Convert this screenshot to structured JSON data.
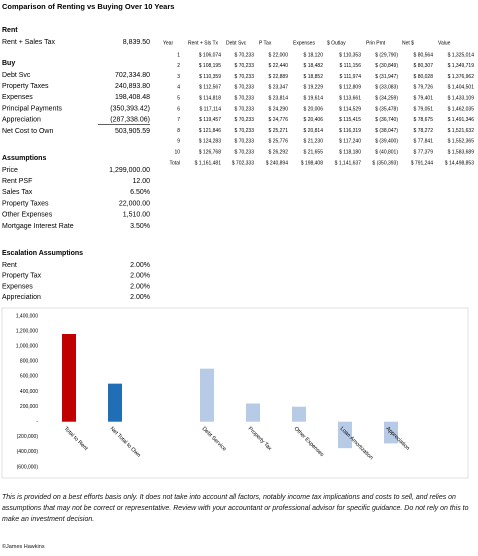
{
  "title": "Comparison of Renting vs Buying Over 10 Years",
  "rent": {
    "heading": "Rent",
    "rows": [
      [
        "Rent + Sales Tax",
        "8,839.50"
      ]
    ]
  },
  "buy": {
    "heading": "Buy",
    "rows": [
      [
        "Debt Svc",
        "702,334.80"
      ],
      [
        "Property Taxes",
        "240,893.80"
      ],
      [
        "Expenses",
        "198,408.48"
      ],
      [
        "Principal Payments",
        "(350,393.42)"
      ],
      [
        "Appreciation",
        "(287,338.06)"
      ],
      [
        "Net Cost to Own",
        "503,905.59"
      ]
    ]
  },
  "assumptions": {
    "heading": "Assumptions",
    "rows": [
      [
        "Price",
        "1,299,000.00"
      ],
      [
        "Rent PSF",
        "12.00"
      ],
      [
        "Sales Tax",
        "6.50%"
      ],
      [
        "Property Taxes",
        "22,000.00"
      ],
      [
        "Other Expenses",
        "1,510.00"
      ],
      [
        "Mortgage Interest Rate",
        "3.50%"
      ]
    ]
  },
  "escalation": {
    "heading": "Escalation Assumptions",
    "rows": [
      [
        "Rent",
        "2.00%"
      ],
      [
        "Property Tax",
        "2.00%"
      ],
      [
        "Expenses",
        "2.00%"
      ],
      [
        "Appreciation",
        "2.00%"
      ]
    ]
  },
  "yearly_table": {
    "columns": [
      "Year",
      "Rent + Sls Tx",
      "Debt Svc",
      "P Tax",
      "Expenses",
      "$ Outlay",
      "Prin Pmt",
      "Net $",
      "Value"
    ],
    "rows": [
      [
        "1",
        "$ 106,074",
        "$ 70,233",
        "$ 22,000",
        "$ 18,120",
        "$ 110,353",
        "$ (29,790)",
        "$ 80,564",
        "$ 1,325,014"
      ],
      [
        "2",
        "$ 108,195",
        "$ 70,233",
        "$ 22,440",
        "$ 18,482",
        "$ 111,156",
        "$ (30,849)",
        "$ 80,307",
        "$ 1,349,719"
      ],
      [
        "3",
        "$ 110,359",
        "$ 70,233",
        "$ 22,889",
        "$ 18,852",
        "$ 111,974",
        "$ (31,947)",
        "$ 80,028",
        "$ 1,376,962"
      ],
      [
        "4",
        "$ 112,567",
        "$ 70,233",
        "$ 23,347",
        "$ 19,229",
        "$ 112,809",
        "$ (33,083)",
        "$ 79,726",
        "$ 1,404,501"
      ],
      [
        "5",
        "$ 114,818",
        "$ 70,233",
        "$ 23,814",
        "$ 19,614",
        "$ 113,661",
        "$ (34,259)",
        "$ 79,401",
        "$ 1,433,109"
      ],
      [
        "6",
        "$ 117,114",
        "$ 70,233",
        "$ 24,290",
        "$ 20,006",
        "$ 114,529",
        "$ (35,478)",
        "$ 79,051",
        "$ 1,462,035"
      ],
      [
        "7",
        "$ 119,457",
        "$ 70,233",
        "$ 24,776",
        "$ 20,406",
        "$ 115,415",
        "$ (36,740)",
        "$ 78,675",
        "$ 1,491,346"
      ],
      [
        "8",
        "$ 121,846",
        "$ 70,233",
        "$ 25,271",
        "$ 20,814",
        "$ 116,319",
        "$ (38,047)",
        "$ 78,272",
        "$ 1,521,632"
      ],
      [
        "9",
        "$ 124,283",
        "$ 70,233",
        "$ 25,776",
        "$ 21,230",
        "$ 117,240",
        "$ (39,400)",
        "$ 77,841",
        "$ 1,552,365"
      ],
      [
        "10",
        "$ 126,768",
        "$ 70,233",
        "$ 26,292",
        "$ 21,655",
        "$ 118,180",
        "$ (40,801)",
        "$ 77,379",
        "$ 1,583,689"
      ],
      [
        "Total",
        "$ 1,161,481",
        "$ 702,333",
        "$ 240,894",
        "$ 198,408",
        "$ 1,141,637",
        "$ (350,393)",
        "$ 791,244",
        "$ 14,498,853"
      ]
    ]
  },
  "chart_data": {
    "type": "bar",
    "categories": [
      "Total to Rent",
      "Net Total to Own",
      null,
      "Debt Service",
      "Property Tax",
      "Other Expenses",
      "Loan Amortization",
      "Appreciation",
      null
    ],
    "values": [
      1161481,
      503906,
      null,
      702335,
      240894,
      198408,
      -350393,
      -287338,
      null
    ],
    "colors": [
      "#c00000",
      "#1f6eb6",
      null,
      "#b7cae6",
      "#b7cae6",
      "#b7cae6",
      "#b7cae6",
      "#b7cae6",
      null
    ],
    "ylim": [
      -600000,
      1400000
    ],
    "yticks": [
      {
        "value": -600000,
        "label": "(600,000)"
      },
      {
        "value": -400000,
        "label": "(400,000)"
      },
      {
        "value": -200000,
        "label": "(200,000)"
      },
      {
        "value": 0,
        "label": "-"
      },
      {
        "value": 200000,
        "label": "200,000"
      },
      {
        "value": 400000,
        "label": "400,000"
      },
      {
        "value": 600000,
        "label": "600,000"
      },
      {
        "value": 800000,
        "label": "800,000"
      },
      {
        "value": 1000000,
        "label": "1,000,000"
      },
      {
        "value": 1200000,
        "label": "1,200,000"
      },
      {
        "value": 1400000,
        "label": "1,400,000"
      }
    ],
    "grid": false
  },
  "disclaimer": "This is provided on a best efforts basis only. It does not take into account all factors, notably income tax implications and costs to sell, and relies on assumptions that may not be correct or representative. Review with your accountant or professional advisor for specific guidance. Do not rely on this to make an investment decision.",
  "copyright": "©James Hawkins"
}
